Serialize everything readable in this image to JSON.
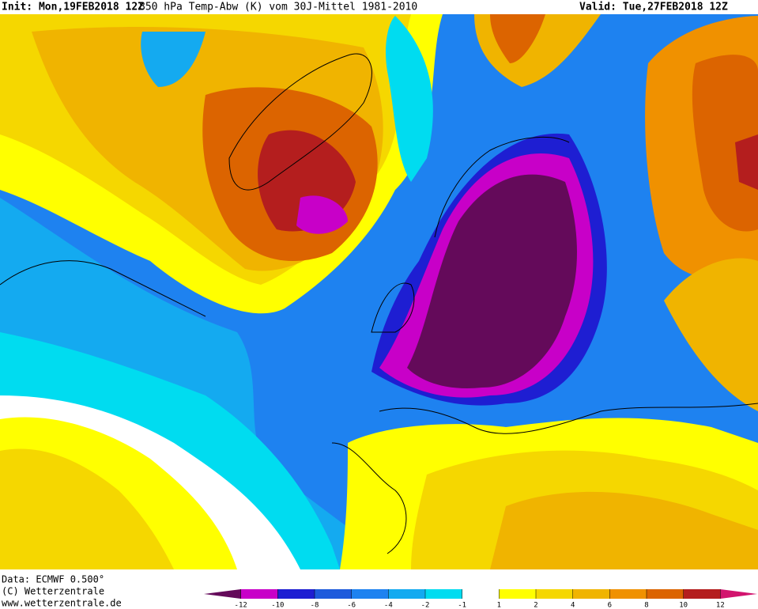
{
  "header": {
    "init": "Init: Mon,19FEB2018 12Z",
    "title": "850 hPa Temp-Abw (K) vom 30J-Mittel 1981-2010",
    "valid": "Valid: Tue,27FEB2018 12Z"
  },
  "footer": {
    "data": "Data: ECMWF  0.500°",
    "copyright": "(C) Wetterzentrale",
    "url": "www.wetterzentrale.de"
  },
  "colorbar": {
    "ticks": [
      -12,
      -10,
      -8,
      -6,
      -4,
      -2,
      -1,
      1,
      2,
      4,
      6,
      8,
      10,
      12
    ],
    "colors": [
      "#640a5a",
      "#c800c8",
      "#1e1ed2",
      "#1e5adc",
      "#1e82f0",
      "#14aaf0",
      "#00dcf0",
      "#ffffff",
      "#ffff00",
      "#f5d700",
      "#f0b400",
      "#f09100",
      "#dc6400",
      "#b41e1e",
      "#d2146e"
    ]
  }
}
